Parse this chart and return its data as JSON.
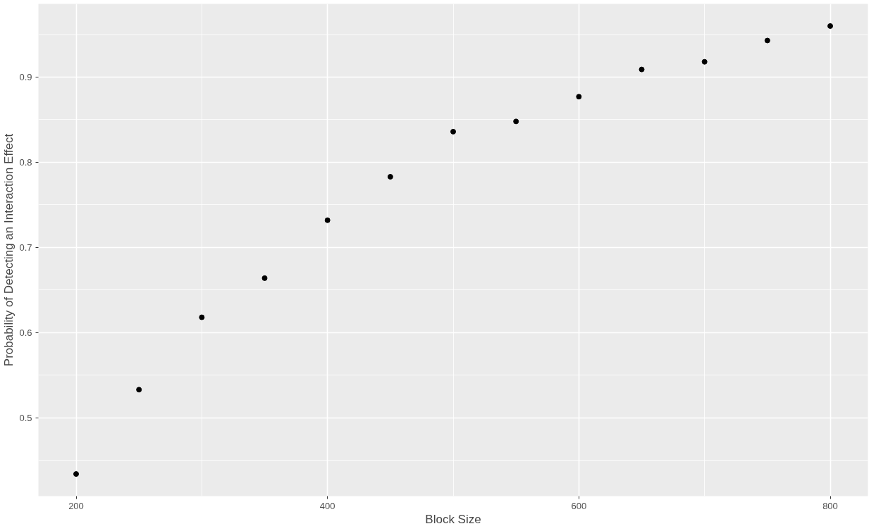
{
  "chart_data": {
    "type": "scatter",
    "xlabel": "Block Size",
    "ylabel": "Probability of Detecting an Interaction Effect",
    "x": [
      200,
      250,
      300,
      350,
      400,
      450,
      500,
      550,
      600,
      650,
      700,
      750,
      800
    ],
    "values": [
      0.434,
      0.533,
      0.618,
      0.664,
      0.732,
      0.783,
      0.836,
      0.848,
      0.877,
      0.909,
      0.918,
      0.943,
      0.96
    ],
    "color": "#000000",
    "marker": "circle",
    "xlim": [
      170,
      830
    ],
    "ylim": [
      0.408,
      0.986
    ],
    "xticks": [
      200,
      400,
      600,
      800
    ],
    "yticks": [
      0.5,
      0.6,
      0.7,
      0.8,
      0.9
    ],
    "grid": true
  }
}
